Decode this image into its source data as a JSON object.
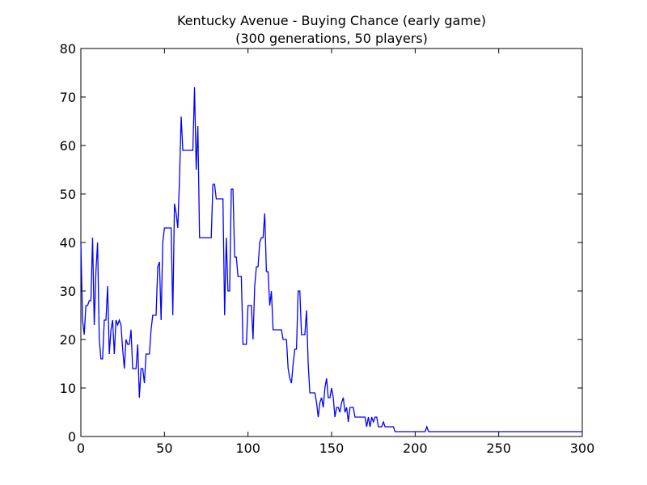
{
  "chart_data": {
    "type": "line",
    "title": "Kentucky Avenue - Buying Chance (early game)",
    "subtitle": "(300 generations, 50 players)",
    "x": [
      0,
      1,
      2,
      3,
      4,
      5,
      6,
      7,
      8,
      9,
      10,
      11,
      12,
      13,
      14,
      15,
      16,
      17,
      18,
      19,
      20,
      21,
      22,
      23,
      24,
      25,
      26,
      27,
      28,
      29,
      30,
      31,
      32,
      33,
      34,
      35,
      36,
      37,
      38,
      39,
      40,
      41,
      42,
      43,
      44,
      45,
      46,
      47,
      48,
      49,
      50,
      54,
      55,
      56,
      57,
      58,
      59,
      60,
      61,
      67,
      68,
      69,
      70,
      71,
      78,
      79,
      80,
      81,
      85,
      86,
      87,
      88,
      89,
      90,
      91,
      92,
      93,
      94,
      96,
      97,
      99,
      100,
      102,
      103,
      104,
      105,
      106,
      107,
      108,
      109,
      110,
      111,
      112,
      113,
      114,
      115,
      120,
      121,
      123,
      124,
      125,
      126,
      127,
      128,
      129,
      130,
      131,
      132,
      134,
      135,
      136,
      137,
      140,
      141,
      142,
      143,
      144,
      145,
      146,
      147,
      148,
      149,
      150,
      151,
      152,
      153,
      154,
      155,
      156,
      157,
      158,
      159,
      160,
      161,
      163,
      164,
      170,
      171,
      172,
      173,
      174,
      175,
      176,
      177,
      178,
      180,
      181,
      182,
      187,
      188,
      206,
      207,
      208,
      300
    ],
    "series": [
      {
        "name": "Buying chance",
        "color": "#0000ff",
        "values": [
          40,
          24,
          21,
          27,
          27,
          28,
          28,
          41,
          23,
          34,
          40,
          20,
          16,
          16,
          24,
          24,
          31,
          17,
          22,
          24,
          17,
          24,
          23,
          24,
          23,
          18,
          14,
          20,
          19,
          19,
          22,
          14,
          14,
          14,
          19,
          8,
          14,
          14,
          11,
          17,
          17,
          17,
          22,
          25,
          25,
          25,
          35,
          36,
          24,
          40,
          43,
          43,
          25,
          48,
          46,
          43,
          53,
          66,
          59,
          59,
          72,
          55,
          64,
          41,
          41,
          52,
          52,
          49,
          49,
          25,
          41,
          30,
          30,
          51,
          51,
          37,
          37,
          33,
          33,
          19,
          19,
          27,
          27,
          20,
          31,
          35,
          35,
          40,
          41,
          41,
          46,
          34,
          34,
          27,
          30,
          22,
          22,
          20,
          20,
          14,
          12,
          11,
          15,
          18,
          18,
          30,
          30,
          21,
          21,
          26,
          15,
          9,
          9,
          7,
          4,
          7,
          8,
          6,
          10,
          12,
          8,
          8,
          10,
          8,
          4,
          6,
          6,
          5,
          7,
          8,
          5,
          6,
          3,
          6,
          6,
          4,
          4,
          2,
          4,
          2,
          4,
          3,
          4,
          4,
          2,
          2,
          3,
          2,
          2,
          1,
          1,
          2,
          1,
          1
        ]
      }
    ],
    "xlim": [
      0,
      300
    ],
    "ylim": [
      0,
      80
    ],
    "xticks": [
      0,
      50,
      100,
      150,
      200,
      250,
      300
    ],
    "yticks": [
      0,
      10,
      20,
      30,
      40,
      50,
      60,
      70,
      80
    ]
  }
}
